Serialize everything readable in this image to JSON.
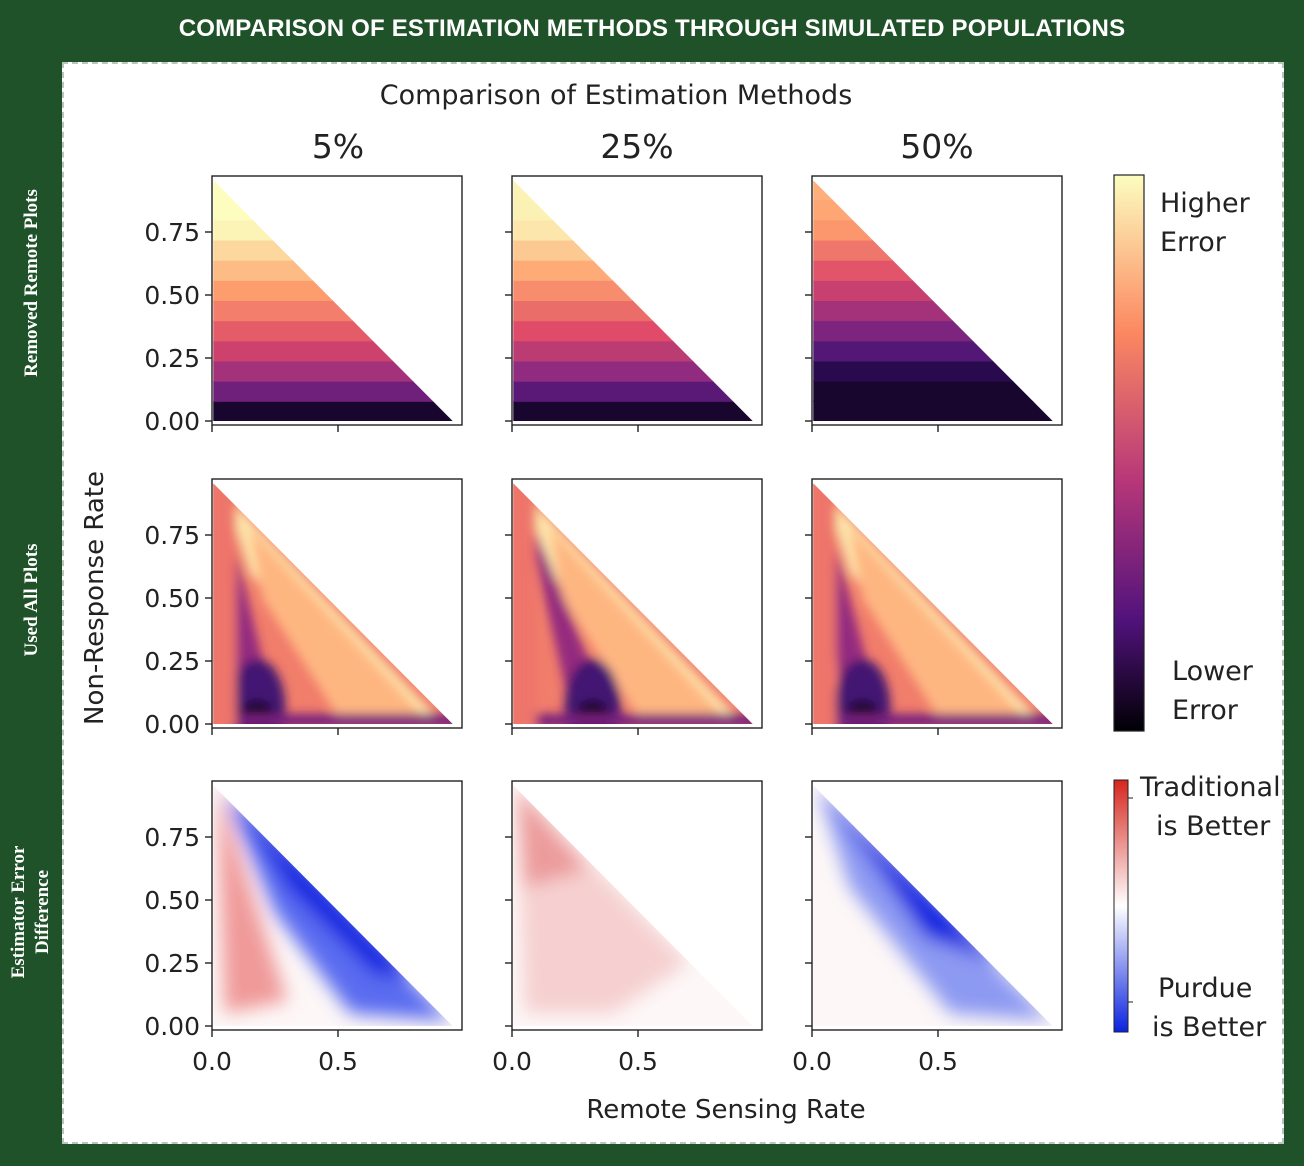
{
  "banner_title": "COMPARISON OF ESTIMATION METHODS THROUGH SIMULATED POPULATIONS",
  "row_labels": [
    "Removed Remote Plots",
    "Used All Plots",
    "Estimator Error Difference"
  ],
  "colorbars": {
    "error": {
      "high": [
        "Higher",
        "Error"
      ],
      "low": [
        "Lower",
        "Error"
      ],
      "colors": [
        "#fcfdbf",
        "#fc8961",
        "#b73779",
        "#51127c",
        "#000004"
      ]
    },
    "difference": {
      "high": [
        "Traditional",
        "is Better"
      ],
      "low": [
        "Purdue",
        "is Better"
      ],
      "colors": [
        "#d7261e",
        "#ffffff",
        "#0a22e0"
      ]
    }
  },
  "chart_data": {
    "type": "heatmap",
    "title": "Comparison of Estimation Methods",
    "xlabel": "Remote Sensing Rate",
    "ylabel": "Non-Response Rate",
    "column_titles": [
      "5%",
      "25%",
      "50%"
    ],
    "xlim": [
      0,
      1
    ],
    "ylim": [
      0,
      1
    ],
    "x_ticks": [
      0.0,
      0.5
    ],
    "x_tick_labels": [
      "0.0",
      "0.5"
    ],
    "y_ticks": [
      0.0,
      0.25,
      0.5,
      0.75
    ],
    "y_tick_labels": [
      "0.00",
      "0.25",
      "0.50",
      "0.75"
    ],
    "domain": "x + y < 1 (triangular region, upper-right half empty)",
    "rows": [
      "Removed Remote Plots",
      "Used All Plots",
      "Estimator Error Difference"
    ]
  }
}
